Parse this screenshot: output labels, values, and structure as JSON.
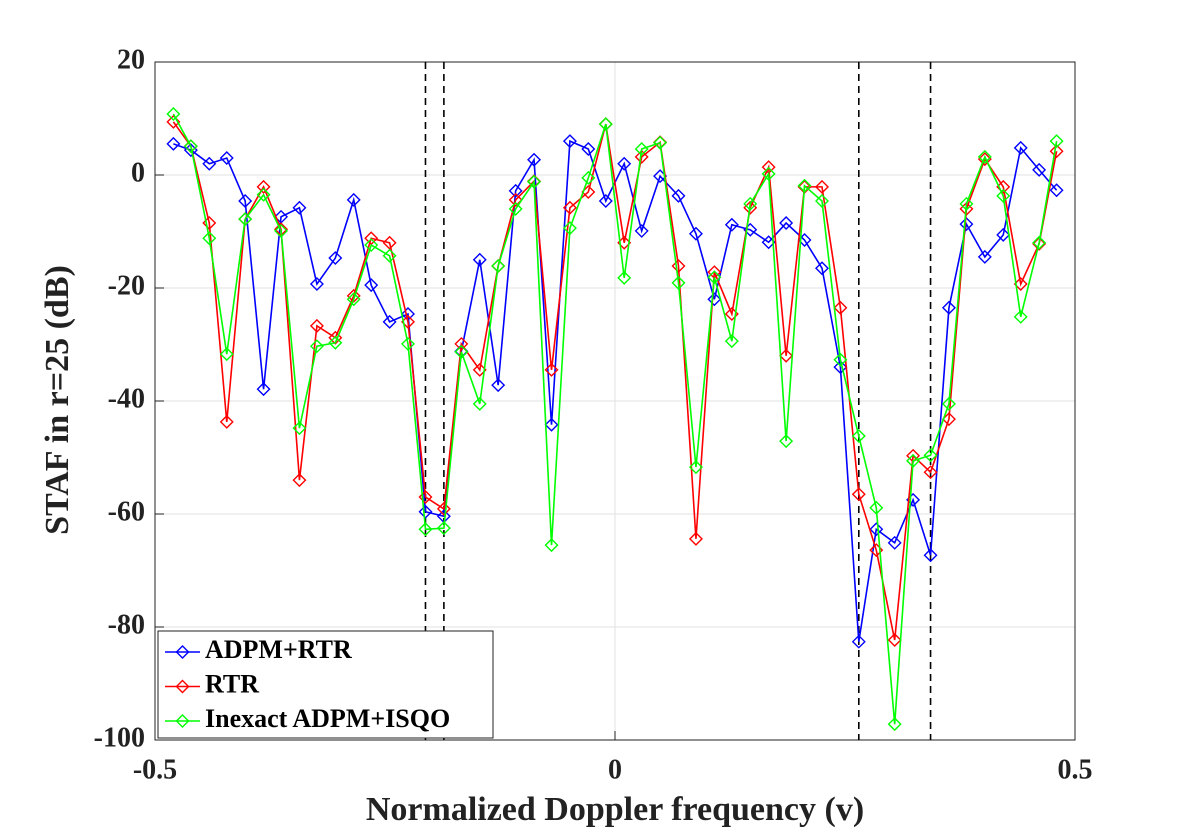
{
  "chart_data": {
    "type": "line",
    "xlabel": "Normalized Doppler frequency (v)",
    "ylabel": "STAF in r=25 (dB)",
    "x": [
      -0.48,
      -0.461,
      -0.441,
      -0.422,
      -0.402,
      -0.382,
      -0.363,
      -0.343,
      -0.324,
      -0.304,
      -0.284,
      -0.265,
      -0.245,
      -0.225,
      -0.206,
      -0.186,
      -0.167,
      -0.147,
      -0.127,
      -0.108,
      -0.088,
      -0.069,
      -0.049,
      -0.029,
      -0.01,
      0.01,
      0.029,
      0.049,
      0.069,
      0.088,
      0.108,
      0.127,
      0.147,
      0.167,
      0.186,
      0.206,
      0.225,
      0.245,
      0.265,
      0.284,
      0.304,
      0.324,
      0.343,
      0.363,
      0.382,
      0.402,
      0.422,
      0.441,
      0.461,
      0.48
    ],
    "series": [
      {
        "name": "ADPM+RTR",
        "color": "#0000ff",
        "values": [
          5.5,
          4.4,
          2,
          3,
          -4.6,
          -37.9,
          -7.4,
          -5.8,
          -19.3,
          -14.7,
          -4.4,
          -19.5,
          -26,
          -24.6,
          -59.6,
          -60.4,
          -31.2,
          -15,
          -37.2,
          -2.8,
          2.7,
          -44.2,
          6,
          4.6,
          -4.6,
          2,
          -9.9,
          -0.2,
          -3.7,
          -10.4,
          -22,
          -8.8,
          -9.7,
          -11.9,
          -8.5,
          -11.5,
          -16.5,
          -34,
          -82.6,
          -62.7,
          -65.1,
          -57.5,
          -67.3,
          -23.5,
          -8.7,
          -14.5,
          -10.6,
          4.8,
          0.9,
          -2.7
        ]
      },
      {
        "name": "RTR",
        "color": "#ff0000",
        "values": [
          9.4,
          5.1,
          -8.5,
          -43.7,
          -7.8,
          -2.1,
          -9.6,
          -54,
          -26.7,
          -28.8,
          -21.4,
          -11.2,
          -12,
          -26,
          -57,
          -59.1,
          -29.9,
          -34.5,
          -16.1,
          -4.4,
          -1.1,
          -34.5,
          -5.8,
          -3,
          9,
          -12,
          3.2,
          5.8,
          -16.1,
          -64.4,
          -17.2,
          -24.6,
          -5.8,
          1.4,
          -32,
          -2.1,
          -2.1,
          -23.5,
          -56.5,
          -66.4,
          -82.3,
          -49.7,
          -52.6,
          -43.2,
          -6,
          2.8,
          -2.1,
          -19.3,
          -12.2,
          4.2
        ]
      },
      {
        "name": "Inexact ADPM+ISQO",
        "color": "#00ff00",
        "values": [
          10.8,
          5.1,
          -11.2,
          -31.7,
          -7.8,
          -3.5,
          -9.9,
          -44.8,
          -30.3,
          -29.7,
          -22,
          -12.4,
          -14.3,
          -29.9,
          -62.7,
          -62.5,
          -31.3,
          -40.5,
          -16.1,
          -6,
          -1.2,
          -65.5,
          -9.4,
          -0.5,
          9,
          -18.2,
          4.6,
          5.7,
          -19.1,
          -51.7,
          -18.1,
          -29.4,
          -5.1,
          0.2,
          -47.1,
          -1.9,
          -4.6,
          -32.7,
          -46.2,
          -58.9,
          -97.2,
          -50.6,
          -49.6,
          -40.5,
          -5.1,
          3.2,
          -3.7,
          -25.1,
          -12,
          6
        ]
      }
    ],
    "vlines": [
      -0.206,
      -0.186,
      0.265,
      0.343
    ],
    "xlim": [
      -0.5,
      0.5
    ],
    "xticks": [
      -0.5,
      0,
      0.5
    ],
    "ylim": [
      -100,
      20
    ],
    "yticks": [
      -100,
      -80,
      -60,
      -40,
      -20,
      0,
      20
    ],
    "grid": true,
    "legend": "lower left"
  }
}
